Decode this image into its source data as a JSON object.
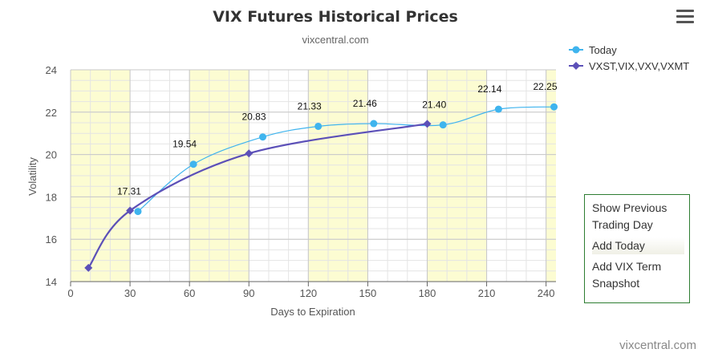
{
  "chart_data": {
    "type": "line",
    "title": "VIX Futures Historical Prices",
    "subtitle": "vixcentral.com",
    "xlabel": "Days to Expiration",
    "ylabel": "Volatility",
    "xlim": [
      0,
      245
    ],
    "ylim": [
      14,
      24
    ],
    "x_ticks": [
      0,
      30,
      60,
      90,
      120,
      150,
      180,
      210,
      240
    ],
    "y_ticks": [
      14,
      16,
      18,
      20,
      22,
      24
    ],
    "grid": true,
    "legend": "top-right",
    "series": [
      {
        "name": "Today",
        "color": "#3fb4ee",
        "marker": "circle",
        "x": [
          34,
          62,
          97,
          125,
          153,
          188,
          216,
          244
        ],
        "y": [
          17.31,
          19.54,
          20.83,
          21.33,
          21.46,
          21.4,
          22.14,
          22.25
        ],
        "labels": [
          "17.31",
          "19.54",
          "20.83",
          "21.33",
          "21.46",
          "21.40",
          "22.14",
          "22.25"
        ]
      },
      {
        "name": "VXST,VIX,VXV,VXMT",
        "color": "#5c50b8",
        "marker": "diamond",
        "x": [
          9,
          30,
          90,
          180
        ],
        "y": [
          14.65,
          17.35,
          20.05,
          21.45
        ]
      }
    ],
    "shaded_bands": [
      [
        0,
        30
      ],
      [
        60,
        90
      ],
      [
        120,
        150
      ],
      [
        180,
        210
      ],
      [
        240,
        245
      ]
    ],
    "band_color": "#fcfcd2"
  },
  "menu": {
    "icon": "hamburger-icon"
  },
  "side_panel": {
    "show_previous": "Show Previous Trading Day",
    "add_today": "Add Today",
    "add_vix_term": "Add VIX Term Snapshot"
  },
  "credits": "vixcentral.com"
}
